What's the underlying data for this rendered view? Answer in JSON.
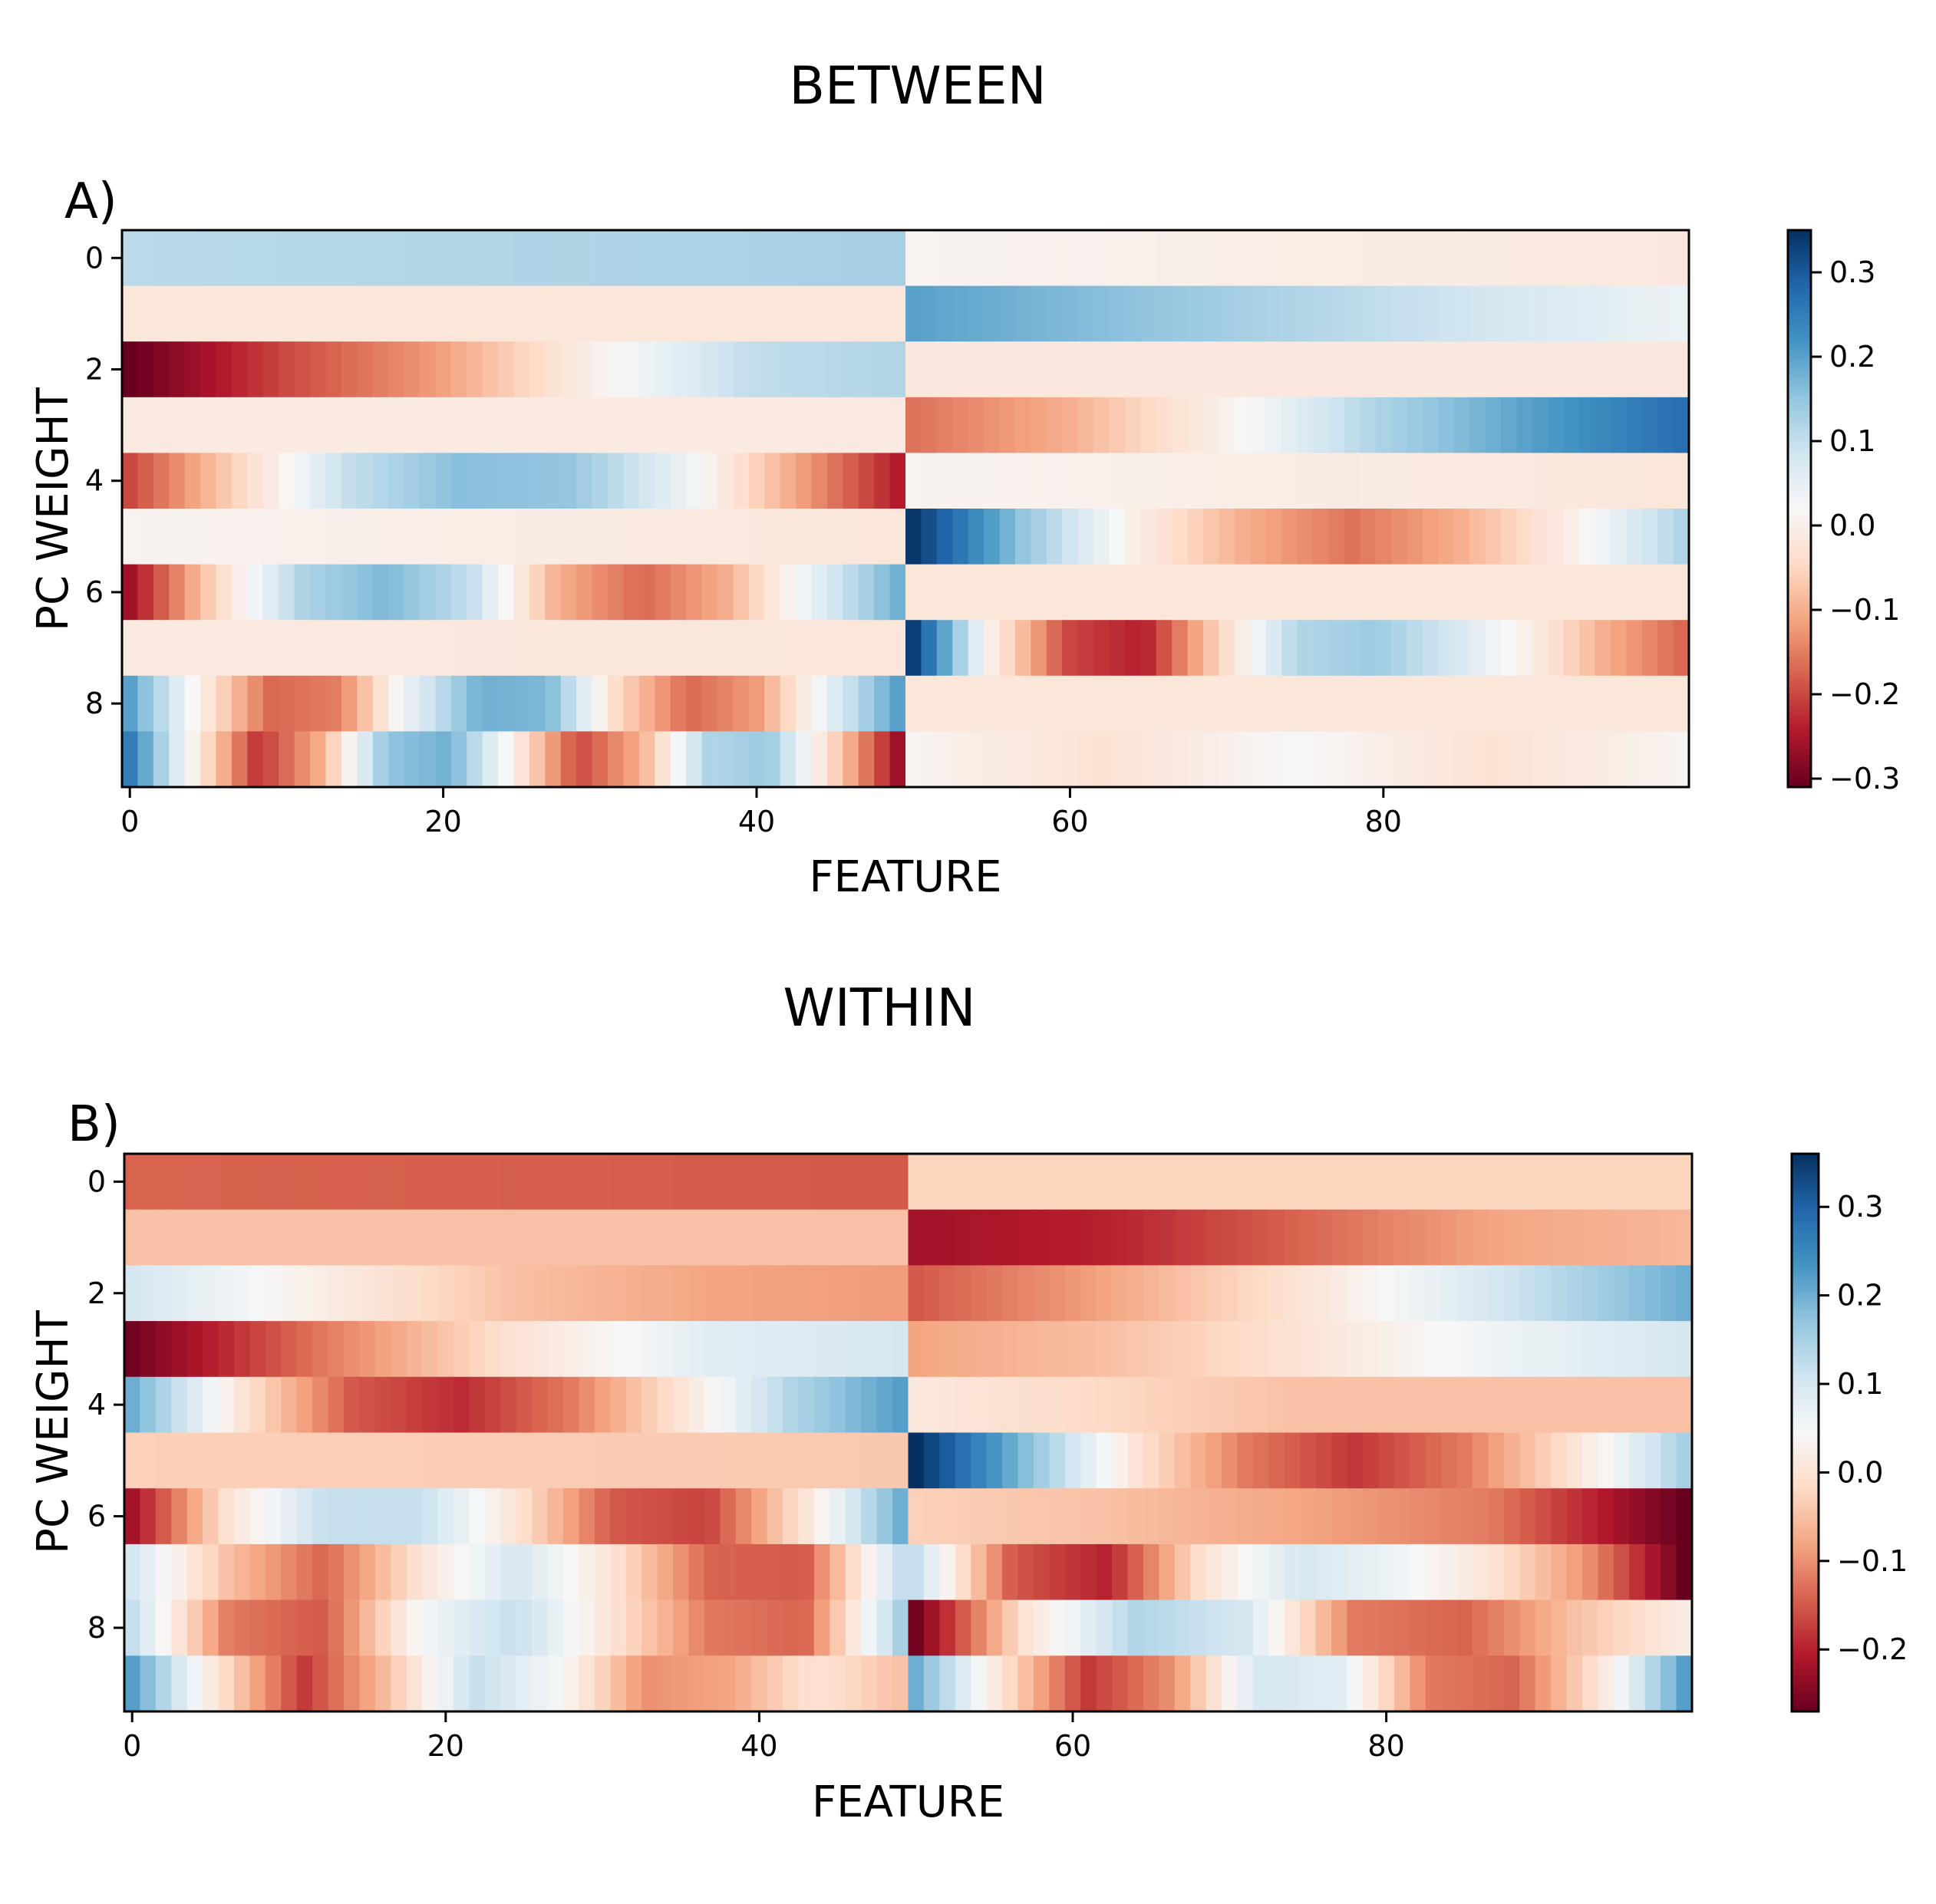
{
  "colors": {
    "colormap_stops": [
      "#67001f",
      "#b2182b",
      "#d6604d",
      "#f4a582",
      "#fddbc7",
      "#f7f7f7",
      "#d1e5f0",
      "#92c5de",
      "#4393c3",
      "#2166ac",
      "#053061"
    ],
    "axis": "#000000",
    "background": "#ffffff"
  },
  "chart_data": [
    {
      "type": "heatmap",
      "title": "BETWEEN",
      "panel_label": "A)",
      "xlabel": "FEATURE",
      "ylabel": "PC WEIGHT",
      "x_ticks": [
        "0",
        "20",
        "40",
        "60",
        "80"
      ],
      "y_ticks": [
        "0",
        "2",
        "4",
        "6",
        "8"
      ],
      "n_features": 100,
      "n_components": 10,
      "colorbar": {
        "ticks": [
          "0.3",
          "0.2",
          "0.1",
          "0.0",
          "−0.1",
          "−0.2",
          "−0.3"
        ],
        "vmin": -0.31,
        "vmax": 0.35
      },
      "rows": [
        {
          "a": [
            0.11,
            0.13
          ],
          "b": [
            0.01,
            -0.015
          ]
        },
        {
          "a": [
            -0.02,
            -0.02
          ],
          "b": [
            0.2,
            0.04
          ]
        },
        {
          "a": [
            -0.31,
            -0.2,
            -0.12,
            0,
            0.1,
            0.12
          ],
          "b": [
            -0.015,
            -0.015
          ]
        },
        {
          "a": [
            -0.01,
            -0.01
          ],
          "b": [
            -0.16,
            -0.1,
            0.0,
            0.12,
            0.2,
            0.27
          ]
        },
        {
          "a": [
            -0.2,
            -0.05,
            0.1,
            0.16,
            0.15,
            0.05,
            -0.1,
            -0.24
          ],
          "b": [
            0.01,
            -0.02
          ]
        },
        {
          "a": [
            0.01,
            -0.02
          ],
          "b": [
            0.34,
            0.15,
            0.0,
            -0.1,
            -0.16,
            -0.1,
            0.0,
            0.12
          ]
        },
        {
          "a": [
            -0.26,
            -0.05,
            0.12,
            0.17,
            0.1,
            -0.1,
            -0.17,
            -0.1,
            0.05,
            0.18
          ],
          "b": [
            -0.02,
            -0.02
          ]
        },
        {
          "a": [
            -0.01,
            -0.02
          ],
          "b": [
            0.33,
            0.0,
            -0.2,
            -0.24,
            -0.05,
            0.12,
            0.14,
            0.08,
            0.0,
            -0.1,
            -0.17
          ]
        },
        {
          "a": [
            0.2,
            0.0,
            -0.17,
            -0.15,
            0.05,
            0.18,
            0.17,
            -0.05,
            -0.17,
            -0.12,
            0.05,
            0.2
          ],
          "b": [
            -0.02,
            -0.02
          ]
        },
        {
          "a": [
            0.25,
            0.0,
            -0.22,
            -0.1,
            0.15,
            0.18,
            0.0,
            -0.2,
            -0.1,
            0.12,
            0.14,
            -0.05,
            -0.26
          ],
          "b": [
            0.01,
            -0.03,
            0.02,
            -0.03,
            0.01
          ]
        }
      ]
    },
    {
      "type": "heatmap",
      "title": "WITHIN",
      "panel_label": "B)",
      "xlabel": "FEATURE",
      "ylabel": "PC WEIGHT",
      "x_ticks": [
        "0",
        "20",
        "40",
        "60",
        "80"
      ],
      "y_ticks": [
        "0",
        "2",
        "4",
        "6",
        "8"
      ],
      "n_features": 100,
      "n_components": 10,
      "colorbar": {
        "ticks": [
          "0.3",
          "0.2",
          "0.1",
          "0.0",
          "−0.1",
          "−0.2"
        ],
        "vmin": -0.27,
        "vmax": 0.36
      },
      "rows": [
        {
          "a": [
            -0.14,
            -0.15
          ],
          "b": [
            -0.025,
            -0.025
          ]
        },
        {
          "a": [
            -0.05,
            -0.05
          ],
          "b": [
            -0.22,
            -0.2,
            -0.14,
            -0.08,
            -0.06
          ]
        },
        {
          "a": [
            0.1,
            0.02,
            -0.05,
            -0.08,
            -0.09
          ],
          "b": [
            -0.15,
            -0.08,
            0.0,
            0.1,
            0.2
          ]
        },
        {
          "a": [
            -0.26,
            -0.12,
            0.0,
            0.08,
            0.1
          ],
          "b": [
            -0.08,
            -0.05,
            0.0,
            0.06,
            0.1
          ]
        },
        {
          "a": [
            0.2,
            0.0,
            -0.15,
            -0.19,
            -0.12,
            0.0,
            0.14,
            0.22
          ],
          "b": [
            0.01,
            -0.05,
            -0.05
          ]
        },
        {
          "a": [
            -0.03,
            -0.04
          ],
          "b": [
            0.36,
            0.18,
            0.0,
            -0.12,
            -0.18,
            -0.12,
            0.0,
            0.15
          ]
        },
        {
          "a": [
            -0.22,
            0.0,
            0.12,
            0.12,
            0.0,
            -0.15,
            -0.17,
            0.0,
            0.2
          ],
          "b": [
            -0.03,
            -0.05,
            -0.08,
            -0.12,
            -0.27
          ]
        },
        {
          "a": [
            0.1,
            -0.05,
            -0.14,
            0.0,
            0.1,
            0.0,
            -0.14,
            -0.15,
            0.12
          ],
          "b": [
            0.12,
            -0.15,
            -0.2,
            0.0,
            0.1,
            0.06,
            0.0,
            -0.1,
            -0.27
          ]
        },
        {
          "a": [
            0.12,
            -0.12,
            -0.15,
            0.05,
            0.12,
            0.0,
            -0.12,
            -0.14,
            0.15
          ],
          "b": [
            -0.26,
            0.0,
            0.14,
            0.1,
            -0.12,
            -0.14,
            -0.05,
            0.02
          ]
        },
        {
          "a": [
            0.22,
            0.0,
            -0.18,
            -0.05,
            0.12,
            0.05,
            -0.1,
            -0.08,
            0.0,
            -0.05
          ],
          "b": [
            0.2,
            0.0,
            -0.18,
            -0.1,
            0.1,
            0.08,
            -0.12,
            -0.14,
            0.0,
            0.22
          ]
        }
      ]
    }
  ]
}
